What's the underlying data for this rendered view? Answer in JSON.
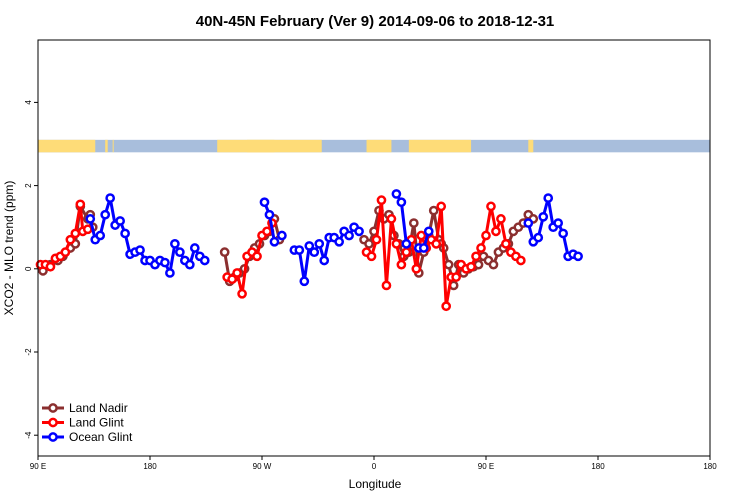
{
  "chart_data": {
    "type": "line",
    "title": "40N-45N February (Ver 9)   2014-09-06 to 2018-12-31",
    "xlabel": "Longitude",
    "ylabel": "XCO2 - MLO trend (ppm)",
    "xlim": [
      -90,
      180
    ],
    "ylim": [
      -4.5,
      5.5
    ],
    "grid": false,
    "legend_position": "bottom-left",
    "x_ticks": [
      {
        "value": -90,
        "label": "90 E"
      },
      {
        "value": -45,
        "label": "180"
      },
      {
        "value": 0,
        "label": "90 W"
      },
      {
        "value": 45,
        "label": "0"
      },
      {
        "value": 90,
        "label": "90 E"
      },
      {
        "value": 135,
        "label": "180"
      }
    ],
    "y_ticks": [
      {
        "value": -4,
        "label": "-4"
      },
      {
        "value": -2,
        "label": "-2"
      },
      {
        "value": 0,
        "label": "0"
      },
      {
        "value": 2,
        "label": "2"
      },
      {
        "value": 4,
        "label": "4"
      }
    ],
    "land_band": {
      "y_range": [
        2.8,
        3.1
      ],
      "ocean_color": "#a8bedc",
      "land_color": "#fedc78",
      "land_segments": [
        [
          -90,
          -67
        ],
        [
          -63,
          -62
        ],
        [
          -60,
          -60
        ],
        [
          -18,
          5
        ],
        [
          -6,
          24
        ],
        [
          42,
          52
        ],
        [
          59,
          84
        ],
        [
          107,
          109
        ]
      ]
    },
    "series": [
      {
        "name": "Land Nadir",
        "color": "#8b2f2f",
        "segments": [
          {
            "x": [
              -88,
              -85,
              -82,
              -80,
              -77,
              -75,
              -73,
              -70,
              -69,
              -68
            ],
            "y": [
              -0.05,
              0.1,
              0.2,
              0.3,
              0.5,
              0.6,
              1.5,
              1.2,
              1.3,
              1.0
            ]
          },
          {
            "x": [
              -15,
              -13,
              -11,
              -9,
              -7,
              -5,
              -3,
              -1,
              1,
              3,
              5,
              7
            ],
            "y": [
              0.4,
              -0.3,
              -0.2,
              -0.1,
              0.0,
              0.3,
              0.5,
              0.6,
              0.8,
              0.9,
              1.2,
              0.7
            ]
          },
          {
            "x": [
              41,
              43,
              45,
              47,
              49,
              51,
              53,
              55,
              57,
              59,
              61,
              63,
              65,
              67,
              69,
              71,
              72,
              73,
              75,
              77,
              79,
              81,
              83,
              85,
              87,
              89,
              91,
              93,
              95,
              97,
              99,
              101,
              103,
              105,
              107,
              109
            ],
            "y": [
              0.7,
              0.6,
              0.9,
              1.4,
              1.2,
              1.3,
              0.8,
              0.6,
              0.3,
              0.4,
              1.1,
              -0.1,
              0.4,
              0.8,
              1.4,
              0.7,
              0.6,
              0.5,
              0.1,
              -0.4,
              0.1,
              -0.1,
              0.0,
              0.05,
              0.1,
              0.3,
              0.2,
              0.1,
              0.4,
              0.5,
              0.6,
              0.9,
              1.0,
              1.1,
              1.3,
              1.2
            ]
          }
        ]
      },
      {
        "name": "Land Glint",
        "color": "#ff0000",
        "segments": [
          {
            "x": [
              -89,
              -87,
              -85,
              -83,
              -81,
              -79,
              -77,
              -75,
              -73,
              -72,
              -70
            ],
            "y": [
              0.1,
              0.1,
              0.05,
              0.25,
              0.3,
              0.4,
              0.7,
              0.85,
              1.55,
              0.9,
              0.95
            ]
          },
          {
            "x": [
              -14,
              -12,
              -10,
              -8,
              -6,
              -4,
              -2,
              0,
              2,
              4
            ],
            "y": [
              -0.2,
              -0.25,
              -0.1,
              -0.6,
              0.3,
              0.4,
              0.3,
              0.8,
              0.9,
              1.1
            ]
          },
          {
            "x": [
              42,
              44,
              46,
              48,
              50,
              52,
              54,
              56,
              58,
              60,
              62,
              64,
              66,
              68,
              70,
              72,
              74,
              76,
              78,
              80,
              82,
              84,
              86,
              88,
              90,
              92,
              94,
              96,
              98,
              100,
              102,
              104
            ],
            "y": [
              0.4,
              0.3,
              0.7,
              1.65,
              -0.4,
              1.2,
              0.6,
              0.1,
              0.4,
              0.7,
              0.0,
              0.8,
              0.5,
              0.7,
              0.6,
              1.5,
              -0.9,
              -0.2,
              -0.2,
              0.1,
              0.0,
              0.05,
              0.3,
              0.5,
              0.8,
              1.5,
              0.9,
              1.2,
              0.6,
              0.4,
              0.3,
              0.2
            ]
          }
        ]
      },
      {
        "name": "Ocean Glint",
        "color": "#0000ff",
        "segments": [
          {
            "x": [
              -69,
              -67,
              -65,
              -63,
              -61,
              -59,
              -57,
              -55,
              -53,
              -51,
              -49,
              -47,
              -45,
              -43,
              -41,
              -39,
              -37,
              -35,
              -33,
              -31,
              -29,
              -27,
              -25,
              -23
            ],
            "y": [
              1.2,
              0.7,
              0.8,
              1.3,
              1.7,
              1.05,
              1.15,
              0.85,
              0.35,
              0.4,
              0.45,
              0.2,
              0.2,
              0.1,
              0.2,
              0.15,
              -0.1,
              0.6,
              0.4,
              0.2,
              0.1,
              0.5,
              0.3,
              0.2
            ]
          },
          {
            "x": [
              1,
              3,
              5
            ],
            "y": [
              1.6,
              1.3,
              0.65
            ]
          },
          {
            "x": [
              8
            ],
            "y": [
              0.8
            ]
          },
          {
            "x": [
              13,
              15,
              17,
              19,
              21,
              23,
              25,
              27,
              29,
              31,
              33,
              35,
              37,
              39
            ],
            "y": [
              0.45,
              0.45,
              -0.3,
              0.55,
              0.4,
              0.6,
              0.2,
              0.75,
              0.75,
              0.65,
              0.9,
              0.8,
              1.0,
              0.9
            ]
          },
          {
            "x": [
              54,
              56,
              58
            ],
            "y": [
              1.8,
              1.6,
              0.6
            ]
          },
          {
            "x": [
              63,
              65,
              67
            ],
            "y": [
              0.5,
              0.5,
              0.9
            ]
          },
          {
            "x": [
              107,
              109,
              111,
              113,
              115,
              117,
              119,
              121,
              123,
              125,
              127
            ],
            "y": [
              1.1,
              0.65,
              0.75,
              1.25,
              1.7,
              1.0,
              1.1,
              0.85,
              0.3,
              0.35,
              0.3
            ]
          }
        ]
      }
    ]
  }
}
